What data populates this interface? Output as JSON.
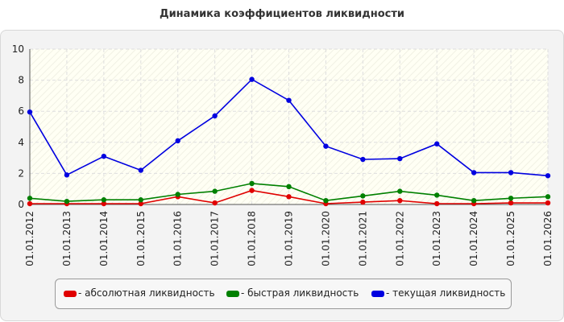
{
  "chart_data": {
    "type": "line",
    "title": "Динамика коэффициентов ликвидности",
    "xlabel": "",
    "ylabel": "",
    "x": [
      "01.01.2012",
      "01.01.2013",
      "01.01.2014",
      "01.01.2015",
      "01.01.2016",
      "01.01.2017",
      "01.01.2018",
      "01.01.2019",
      "01.01.2020",
      "01.01.2021",
      "01.01.2022",
      "01.01.2023",
      "01.01.2024",
      "01.01.2025",
      "01.01.2026"
    ],
    "ylim": [
      0,
      10
    ],
    "yticks": [
      "0",
      "2",
      "4",
      "6",
      "8",
      "10"
    ],
    "grid": true,
    "legend_position": "bottom",
    "series": [
      {
        "name": "- абсолютная ликвидность",
        "color": "#e00000",
        "values": [
          0.05,
          0.05,
          0.05,
          0.05,
          0.5,
          0.1,
          0.9,
          0.5,
          0.05,
          0.15,
          0.25,
          0.05,
          0.05,
          0.1,
          0.1
        ]
      },
      {
        "name": "- быстрая ликвидность",
        "color": "#008000",
        "values": [
          0.4,
          0.2,
          0.3,
          0.3,
          0.65,
          0.85,
          1.35,
          1.15,
          0.25,
          0.55,
          0.85,
          0.6,
          0.25,
          0.4,
          0.5
        ]
      },
      {
        "name": "- текущая ликвидность",
        "color": "#0000e0",
        "values": [
          5.95,
          1.9,
          3.1,
          2.2,
          4.1,
          5.7,
          8.05,
          6.7,
          3.75,
          2.9,
          2.95,
          3.9,
          2.05,
          2.05,
          1.85
        ]
      }
    ]
  }
}
